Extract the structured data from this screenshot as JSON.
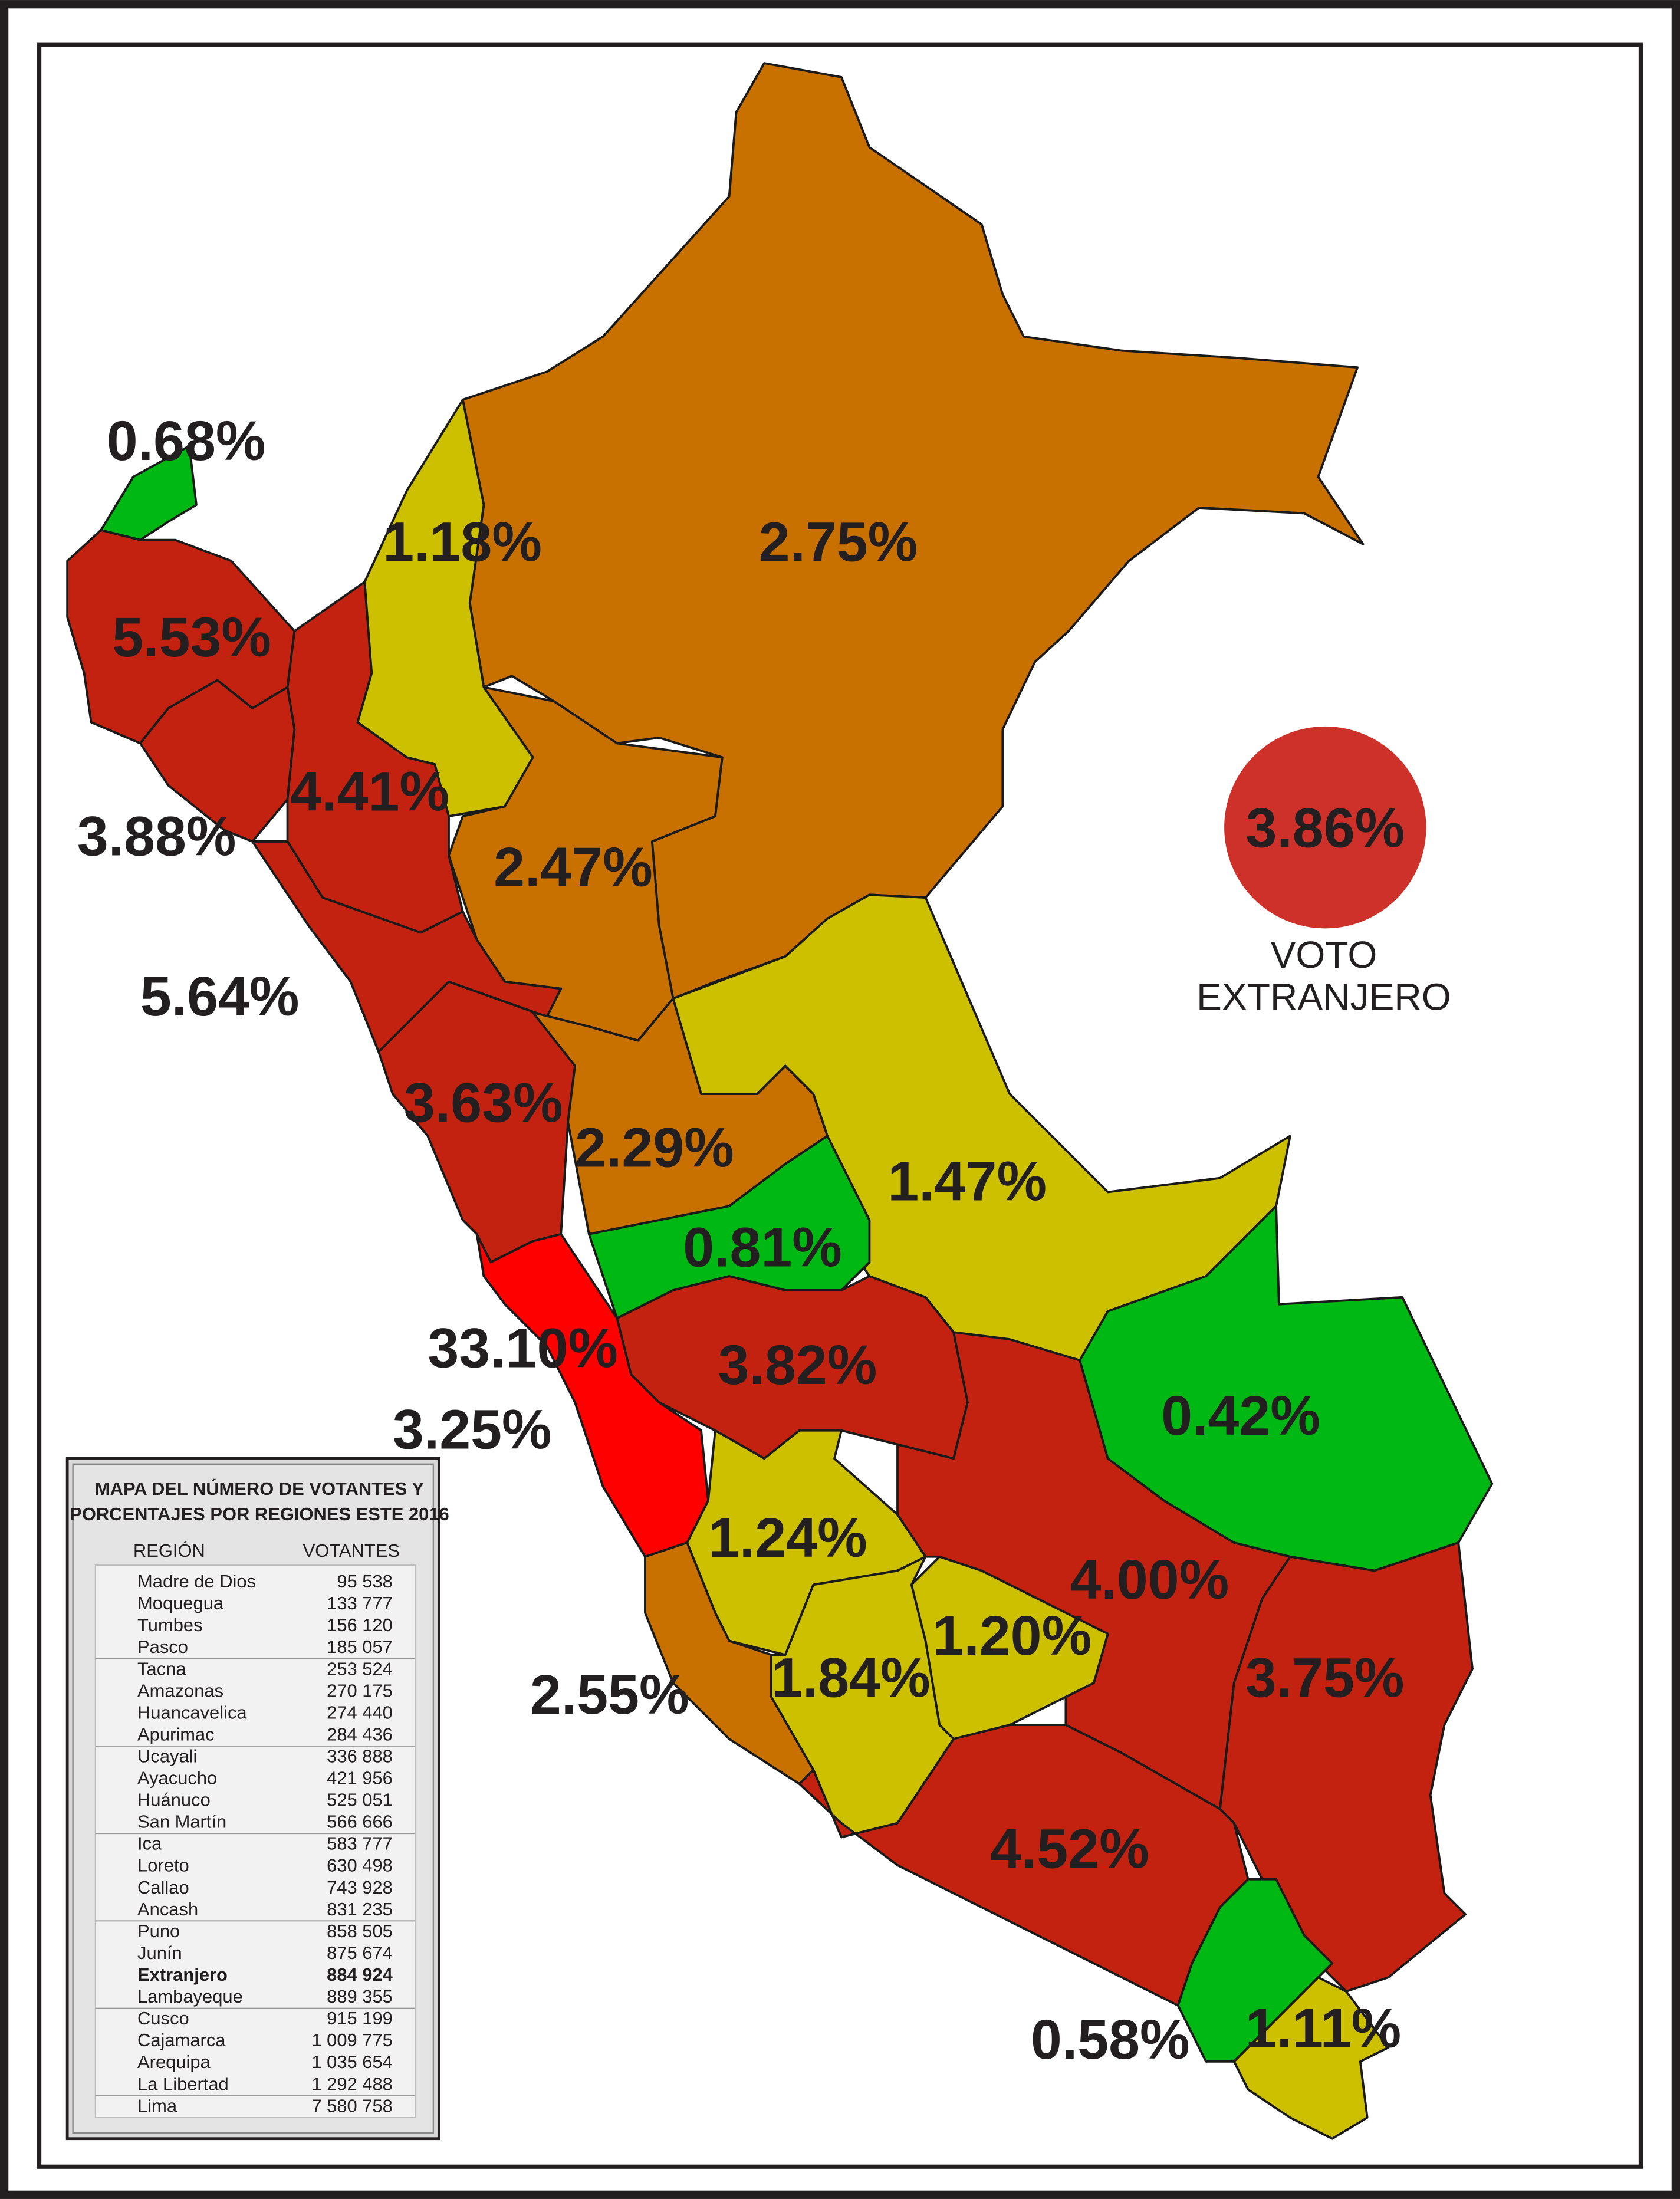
{
  "map": {
    "labels": [
      "0.68%",
      "1.18%",
      "2.75%",
      "5.53%",
      "4.41%",
      "3.88%",
      "2.47%",
      "5.64%",
      "3.63%",
      "2.29%",
      "1.47%",
      "0.81%",
      "33.10%",
      "3.82%",
      "0.42%",
      "3.25%",
      "1.24%",
      "4.00%",
      "1.20%",
      "3.75%",
      "1.84%",
      "2.55%",
      "4.52%",
      "0.58%",
      "1.11%"
    ]
  },
  "foreign": {
    "value": "3.86%",
    "label_lines": [
      "VOTO",
      "EXTRANJERO"
    ]
  },
  "table": {
    "title_lines": [
      "MAPA DEL NÚMERO DE VOTANTES Y",
      "PORCENTAJES POR REGIONES ESTE 2016"
    ],
    "headers": [
      "REGIÓN",
      "VOTANTES"
    ],
    "rows": [
      [
        "Madre de Dios",
        "95 538"
      ],
      [
        "Moquegua",
        "133 777"
      ],
      [
        "Tumbes",
        "156 120"
      ],
      [
        "Pasco",
        "185 057"
      ],
      [
        "Tacna",
        "253 524"
      ],
      [
        "Amazonas",
        "270 175"
      ],
      [
        "Huancavelica",
        "274 440"
      ],
      [
        "Apurimac",
        "284 436"
      ],
      [
        "Ucayali",
        "336 888"
      ],
      [
        "Ayacucho",
        "421 956"
      ],
      [
        "Huánuco",
        "525 051"
      ],
      [
        "San Martín",
        "566 666"
      ],
      [
        "Ica",
        "583 777"
      ],
      [
        "Loreto",
        "630 498"
      ],
      [
        "Callao",
        "743 928"
      ],
      [
        "Ancash",
        "831 235"
      ],
      [
        "Puno",
        "858 505"
      ],
      [
        "Junín",
        "875 674"
      ],
      [
        "Extranjero",
        "884 924"
      ],
      [
        "Lambayeque",
        "889 355"
      ],
      [
        "Cusco",
        "915 199"
      ],
      [
        "Cajamarca",
        "1 009 775"
      ],
      [
        "Arequipa",
        "1 035 654"
      ],
      [
        "La Libertad",
        "1 292 488"
      ],
      [
        "Lima",
        "7 580 758"
      ]
    ]
  }
}
